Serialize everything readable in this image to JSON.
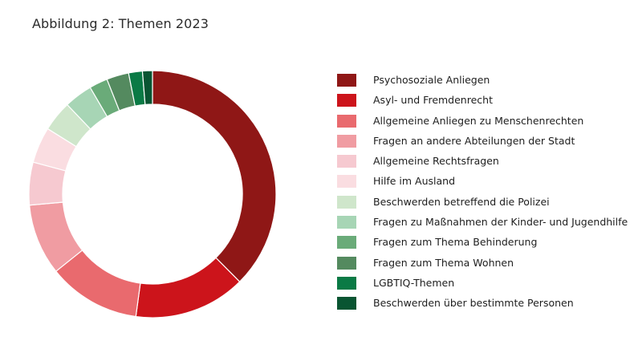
{
  "title": "Abbildung 2: Themen 2023",
  "chart_data": {
    "type": "pie",
    "subtype": "donut",
    "title": "Abbildung 2: Themen 2023",
    "start_angle_deg": 0,
    "direction": "clockwise",
    "legend_position": "right",
    "unit": "percent (estimated from arc angles)",
    "categories": [
      "Psychosoziale Anliegen",
      "Asyl- und Fremdenrecht",
      "Allgemeine Anliegen zu Menschenrechten",
      "Fragen an andere Abteilungen der Stadt",
      "Allgemeine Rechtsfragen",
      "Hilfe im Ausland",
      "Beschwerden betreffend die Polizei",
      "Fragen zu Maßnahmen der Kinder- und Jugendhilfe",
      "Fragen zum Thema Behinderung",
      "Fragen zum Thema Wohnen",
      "LGBTIQ-Themen",
      "Beschwerden über bestimmte Personen"
    ],
    "values": [
      37.5,
      14.6,
      12.1,
      9.3,
      5.6,
      4.7,
      4.0,
      3.7,
      2.4,
      2.9,
      1.8,
      1.3
    ],
    "colors": [
      "#8f1716",
      "#cc141b",
      "#e96a6e",
      "#f09ca2",
      "#f6c9d0",
      "#fadde1",
      "#cfe6cb",
      "#a7d5b5",
      "#6aab79",
      "#548a5f",
      "#0a7a45",
      "#095532"
    ]
  }
}
